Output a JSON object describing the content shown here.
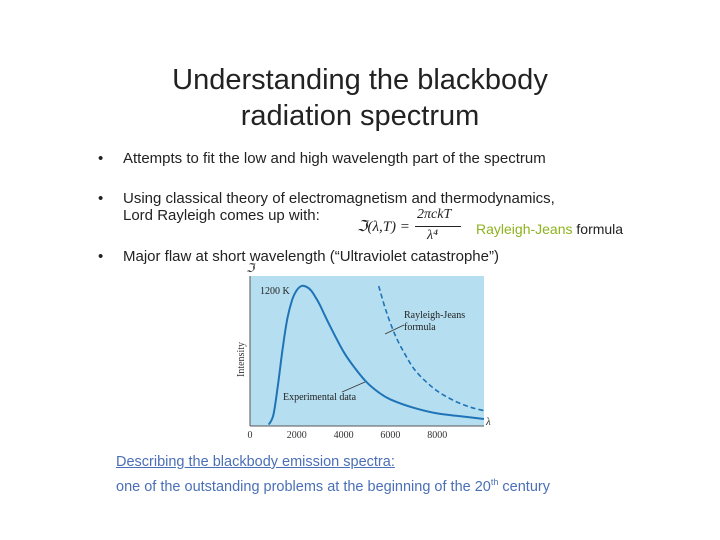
{
  "slide": {
    "title_line1": "Understanding the blackbody",
    "title_line2": "radiation spectrum",
    "bullets": [
      {
        "marker": "•",
        "line1": "Attempts to fit the low and high wavelength part of the spectrum"
      },
      {
        "marker": "•",
        "line1": "Using classical theory of electromagnetism and thermodynamics,",
        "line2": "Lord Rayleigh comes up with:"
      },
      {
        "marker": "•",
        "line1": "Major flaw at short wavelength (“Ultraviolet catastrophe”)"
      }
    ],
    "formula": {
      "lhs": "ℑ(λ,T) =",
      "numerator": "2πckT",
      "denominator": "λ⁴"
    },
    "formula_label": {
      "part1": "Rayleigh-Jeans",
      "part2": " formula"
    },
    "caption": {
      "line1": "Describing the blackbody emission spectra:",
      "line2_prefix": "one of the outstanding problems at the beginning of the 20",
      "line2_sup": "th",
      "line2_suffix": " century"
    }
  },
  "colors": {
    "plot_background": "#b5dff0",
    "curve": "#1f73b7",
    "caption": "#4a6fb8",
    "formula_highlight": "#8db21d"
  },
  "chart_data": {
    "type": "line",
    "title": "",
    "temperature_label": "1200 K",
    "xlabel": "λ",
    "ylabel": "Intensity",
    "y_axis_symbol": "ℑ",
    "xlim": [
      0,
      10000
    ],
    "ylim": [
      0,
      1
    ],
    "x_ticks": [
      "0",
      "2000",
      "4000",
      "6000",
      "8000"
    ],
    "x_tick_values": [
      0,
      2000,
      4000,
      6000,
      8000
    ],
    "series": [
      {
        "name": "Experimental data",
        "style": "solid",
        "x": [
          800,
          1000,
          1200,
          1400,
          1600,
          1800,
          2000,
          2200,
          2400,
          2600,
          2800,
          3000,
          3400,
          4000,
          4500,
          5000,
          5500,
          6000,
          7000,
          8000,
          9000,
          10000
        ],
        "y": [
          0.01,
          0.08,
          0.3,
          0.56,
          0.77,
          0.9,
          0.97,
          1.0,
          0.995,
          0.97,
          0.92,
          0.86,
          0.72,
          0.53,
          0.41,
          0.31,
          0.24,
          0.19,
          0.13,
          0.09,
          0.07,
          0.05
        ]
      },
      {
        "name": "Rayleigh-Jeans formula",
        "style": "dashed",
        "x": [
          5500,
          5800,
          6200,
          6600,
          7000,
          7500,
          8000,
          8500,
          9000,
          9500,
          10000
        ],
        "y": [
          1.0,
          0.83,
          0.65,
          0.52,
          0.41,
          0.32,
          0.25,
          0.2,
          0.16,
          0.13,
          0.11
        ]
      }
    ],
    "grid": false
  }
}
